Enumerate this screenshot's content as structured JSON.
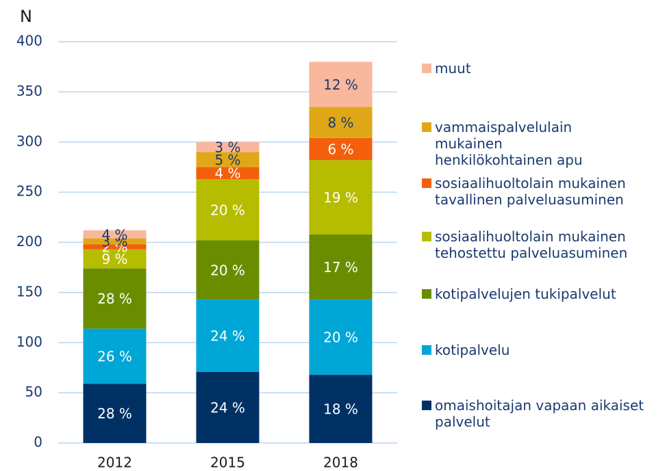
{
  "chart_data": {
    "type": "stacked_bar",
    "y_label": "N",
    "categories": [
      "2012",
      "2015",
      "2018"
    ],
    "ylim": [
      0,
      400
    ],
    "yticks": [
      0,
      50,
      100,
      150,
      200,
      250,
      300,
      350,
      400
    ],
    "grid": true,
    "series": [
      {
        "name": "omaishoitajan vapaan aikaiset palvelut",
        "color": "#003164",
        "values": [
          59,
          71,
          68
        ],
        "value_labels": [
          "28 %",
          "24 %",
          "18 %"
        ]
      },
      {
        "name": "kotipalvelu",
        "color": "#00a6d6",
        "values": [
          55,
          72,
          75
        ],
        "value_labels": [
          "26 %",
          "24 %",
          "20 %"
        ]
      },
      {
        "name": "kotipalvelujen tukipalvelut",
        "color": "#6a8d00",
        "values": [
          60,
          59,
          65
        ],
        "value_labels": [
          "28 %",
          "20 %",
          "17 %"
        ]
      },
      {
        "name": "sosiaalihuoltolain mukainen tehostettu palveluasuminen",
        "color": "#b6bd00",
        "values": [
          19,
          61,
          74
        ],
        "value_labels": [
          "9 %",
          "20 %",
          "19 %"
        ]
      },
      {
        "name": "sosiaalihuoltolain mukainen tavallinen palveluasuminen",
        "color": "#f45f0c",
        "values": [
          5,
          12,
          22
        ],
        "value_labels": [
          "2 %",
          "4 %",
          "6 %"
        ]
      },
      {
        "name": "vammaispalvelulain mukainen henkilökohtainen apu",
        "color": "#e0a818",
        "values": [
          6,
          15,
          31
        ],
        "value_labels": [
          "3 %",
          "5 %",
          "8 %"
        ]
      },
      {
        "name": "muut",
        "color": "#f9b89d",
        "values": [
          8,
          10,
          45
        ],
        "value_labels": [
          "4 %",
          "3 %",
          "12 %"
        ]
      }
    ]
  }
}
